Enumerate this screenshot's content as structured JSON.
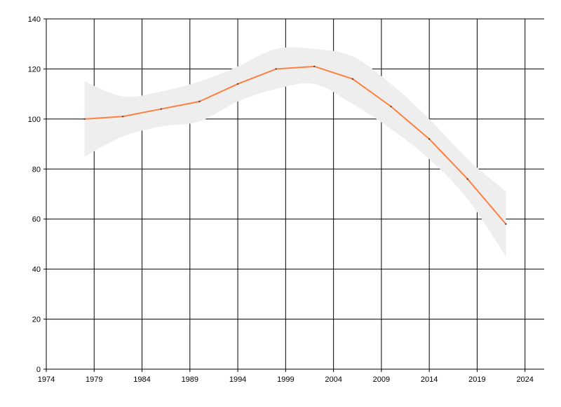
{
  "chart_data": {
    "type": "line",
    "title": "",
    "xlabel": "",
    "ylabel": "",
    "xlim": [
      1974,
      2026
    ],
    "ylim": [
      0,
      140
    ],
    "xticks": [
      1974,
      1979,
      1984,
      1989,
      1994,
      1999,
      2004,
      2009,
      2014,
      2019,
      2024
    ],
    "yticks": [
      0,
      20,
      40,
      60,
      80,
      100,
      120,
      140
    ],
    "grid": true,
    "colors": {
      "line": "#ff7f3f",
      "band": "#eeeeee",
      "marker": "#404040",
      "grid": "#000000"
    },
    "series": [
      {
        "x": [
          1978,
          1982,
          1986,
          1990,
          1994,
          1998,
          2002,
          2006,
          2010,
          2014,
          2018,
          2022
        ],
        "values": [
          100,
          101,
          104,
          107,
          114,
          120,
          121,
          116,
          105,
          92,
          76,
          58
        ],
        "band_upper": [
          115,
          109,
          111,
          115,
          121,
          128,
          128,
          125,
          114,
          100,
          84,
          71
        ],
        "band_lower": [
          85,
          93,
          97,
          99,
          107,
          112,
          114,
          106,
          96,
          84,
          68,
          45
        ]
      }
    ]
  }
}
